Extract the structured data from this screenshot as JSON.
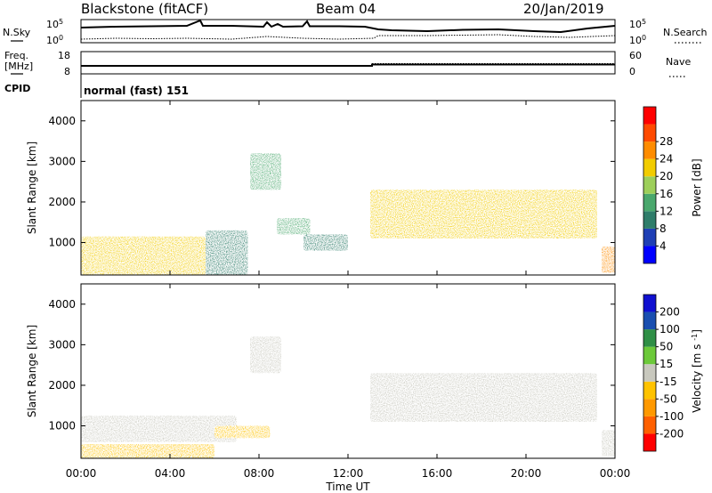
{
  "header": {
    "station": "Blackstone (fitACF)",
    "beam": "Beam 04",
    "date": "20/Jan/2019"
  },
  "noise_panel": {
    "left_label": "N.Sky",
    "right_label": "N.Search",
    "left_ticks": [
      "10^5",
      "10^0"
    ],
    "right_ticks": [
      "10^5",
      "10^0"
    ]
  },
  "freq_panel": {
    "left_label_line1": "Freq.",
    "left_label_line2": "[MHz]",
    "left_ticks": [
      "18",
      "8"
    ],
    "right_label": "Nave",
    "right_ticks": [
      "60",
      "0"
    ],
    "cpid_label": "CPID",
    "cpid_text": "normal (fast) 151"
  },
  "colors": {
    "power": [
      "#0000ff",
      "#1f3fb5",
      "#2f7d6a",
      "#4aa86d",
      "#9dcf5a",
      "#f2cc00",
      "#ff8c00",
      "#ff4a00",
      "#ff0000"
    ],
    "velocity": [
      "#ff0000",
      "#ff6000",
      "#ff9900",
      "#ffc300",
      "#c8c8be",
      "#6cc93a",
      "#2f8f46",
      "#1a4fb0",
      "#1010d0"
    ],
    "ground_scatter": "#c8c8be"
  },
  "chart_data": [
    {
      "type": "heatmap",
      "title": "Power",
      "ylabel": "Slant Range [km]",
      "yticks": [
        "1000",
        "2000",
        "3000",
        "4000"
      ],
      "ylim": [
        200,
        4500
      ],
      "colorbar_label": "Power [dB]",
      "colorbar_ticks": [
        "4",
        "8",
        "12",
        "16",
        "20",
        "24",
        "28"
      ],
      "colorbar_range": [
        0,
        32
      ],
      "regions": [
        {
          "t0": 0.0,
          "t1": 5.6,
          "r0": 200,
          "r1": 1150,
          "level": 18
        },
        {
          "t0": 5.6,
          "t1": 7.5,
          "r0": 200,
          "r1": 1300,
          "level": 10
        },
        {
          "t0": 7.6,
          "t1": 9.0,
          "r0": 2300,
          "r1": 3200,
          "level": 12
        },
        {
          "t0": 8.8,
          "t1": 10.3,
          "r0": 1200,
          "r1": 1600,
          "level": 13
        },
        {
          "t0": 10.0,
          "t1": 12.0,
          "r0": 800,
          "r1": 1200,
          "level": 10
        },
        {
          "t0": 13.0,
          "t1": 23.2,
          "r0": 1100,
          "r1": 2300,
          "level": 20
        },
        {
          "t0": 23.4,
          "t1": 24.0,
          "r0": 250,
          "r1": 900,
          "level": 22
        }
      ]
    },
    {
      "type": "heatmap",
      "title": "Velocity",
      "ylabel": "Slant Range [km]",
      "yticks": [
        "1000",
        "2000",
        "3000",
        "4000"
      ],
      "ylim": [
        200,
        4500
      ],
      "colorbar_label": "Velocity [m s^-1]",
      "colorbar_ticks": [
        "200",
        "100",
        "50",
        "15",
        "-15",
        "-50",
        "-100",
        "-200"
      ],
      "colorbar_range": [
        -250,
        250
      ],
      "regions": [
        {
          "t0": 0.0,
          "t1": 7.0,
          "r0": 600,
          "r1": 1250,
          "velocity": 0
        },
        {
          "t0": 0.0,
          "t1": 6.0,
          "r0": 200,
          "r1": 550,
          "velocity": -50
        },
        {
          "t0": 6.0,
          "t1": 8.5,
          "r0": 700,
          "r1": 1000,
          "velocity": -50
        },
        {
          "t0": 7.6,
          "t1": 9.0,
          "r0": 2300,
          "r1": 3200,
          "velocity": 0
        },
        {
          "t0": 13.0,
          "t1": 23.2,
          "r0": 1100,
          "r1": 2300,
          "velocity": 0
        },
        {
          "t0": 23.4,
          "t1": 24.0,
          "r0": 250,
          "r1": 900,
          "velocity": 0
        }
      ]
    }
  ],
  "x_axis": {
    "label": "Time UT",
    "ticks": [
      "00:00",
      "04:00",
      "08:00",
      "12:00",
      "16:00",
      "20:00",
      "00:00"
    ],
    "range_hours": [
      0,
      24
    ]
  }
}
